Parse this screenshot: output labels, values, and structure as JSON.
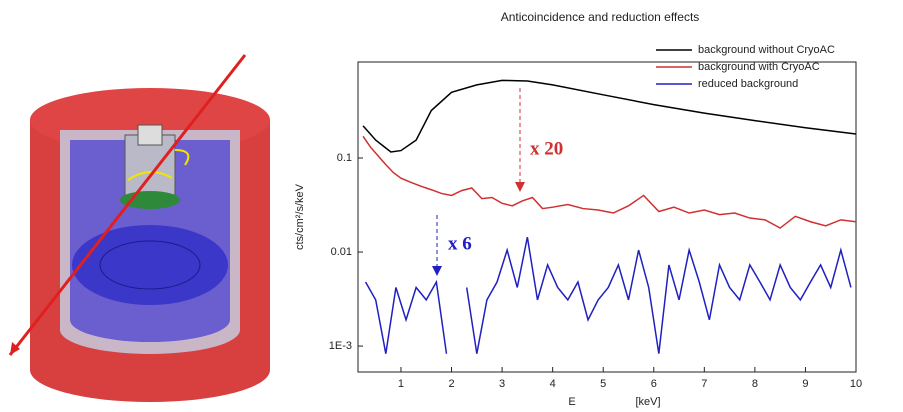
{
  "chart_data": {
    "type": "line",
    "title": "Anticoincidence and reduction effects",
    "y_label": "cts/cm²/s/keV",
    "x_label": "E",
    "x_unit_label": "[keV]",
    "log_y": true,
    "legend": "upper right",
    "xlim": [
      0.15,
      10
    ],
    "xticks": [
      1,
      2,
      3,
      4,
      5,
      6,
      7,
      8,
      9,
      10
    ],
    "ylim": [
      0.00053,
      1.05
    ],
    "yticks": [
      0.1,
      0.01,
      {
        "value": 0.001,
        "label": "1E-3"
      }
    ],
    "series": [
      {
        "name": "background without CryoAC",
        "color": "#000000",
        "x": [
          0.25,
          0.5,
          0.8,
          1.0,
          1.3,
          1.6,
          2.0,
          2.5,
          3.0,
          3.5,
          4,
          5,
          6,
          7,
          8,
          9,
          10
        ],
        "values": [
          0.22,
          0.155,
          0.116,
          0.12,
          0.155,
          0.32,
          0.5,
          0.6,
          0.67,
          0.66,
          0.6,
          0.47,
          0.37,
          0.3,
          0.25,
          0.21,
          0.18
        ]
      },
      {
        "name": "background with CryoAC",
        "color": "#d03030",
        "x": [
          0.25,
          0.4,
          0.55,
          0.7,
          0.85,
          1.0,
          1.2,
          1.4,
          1.6,
          1.8,
          2.0,
          2.2,
          2.4,
          2.6,
          2.8,
          3.0,
          3.2,
          3.4,
          3.6,
          3.8,
          4.0,
          4.3,
          4.6,
          4.9,
          5.2,
          5.5,
          5.8,
          6.1,
          6.4,
          6.7,
          7.0,
          7.3,
          7.6,
          7.9,
          8.2,
          8.5,
          8.8,
          9.1,
          9.4,
          9.7,
          10
        ],
        "values": [
          0.17,
          0.13,
          0.105,
          0.085,
          0.07,
          0.061,
          0.055,
          0.05,
          0.046,
          0.042,
          0.04,
          0.045,
          0.048,
          0.037,
          0.038,
          0.033,
          0.031,
          0.035,
          0.038,
          0.029,
          0.03,
          0.032,
          0.029,
          0.028,
          0.026,
          0.031,
          0.04,
          0.027,
          0.03,
          0.026,
          0.028,
          0.025,
          0.026,
          0.023,
          0.022,
          0.018,
          0.024,
          0.021,
          0.019,
          0.022,
          0.021
        ]
      },
      {
        "name": "reduced background",
        "color": "#2020c0",
        "x": [
          0.3,
          0.5,
          0.7,
          0.9,
          1.1,
          1.3,
          1.5,
          1.7,
          1.9,
          2.1,
          2.3,
          2.5,
          2.7,
          2.9,
          3.1,
          3.3,
          3.5,
          3.7,
          3.9,
          4.1,
          4.3,
          4.5,
          4.7,
          4.9,
          5.1,
          5.3,
          5.5,
          5.7,
          5.9,
          6.1,
          6.3,
          6.5,
          6.7,
          6.9,
          7.1,
          7.3,
          7.5,
          7.7,
          7.9,
          8.1,
          8.3,
          8.5,
          8.7,
          8.9,
          9.1,
          9.3,
          9.5,
          9.7,
          9.9
        ],
        "values": [
          0.0048,
          0.0031,
          0.00083,
          0.0042,
          0.0019,
          0.0042,
          0.0031,
          0.0048,
          0.00083,
          null,
          0.0042,
          0.00083,
          0.0031,
          0.0048,
          0.0105,
          0.0042,
          0.0144,
          0.0031,
          0.0073,
          0.0042,
          0.0031,
          0.0048,
          0.0019,
          0.0031,
          0.0042,
          0.0073,
          0.0031,
          0.0105,
          0.0042,
          0.00083,
          0.0073,
          0.0031,
          0.0105,
          0.0048,
          0.0019,
          0.0073,
          0.0042,
          0.0031,
          0.0073,
          0.0048,
          0.0031,
          0.0073,
          0.0042,
          0.0031,
          0.0048,
          0.0073,
          0.0042,
          0.0105,
          0.0042
        ]
      }
    ],
    "annotations": [
      {
        "text": "x 20",
        "color": "#d03030"
      },
      {
        "text": "x 6",
        "color": "#2020c0"
      }
    ]
  }
}
